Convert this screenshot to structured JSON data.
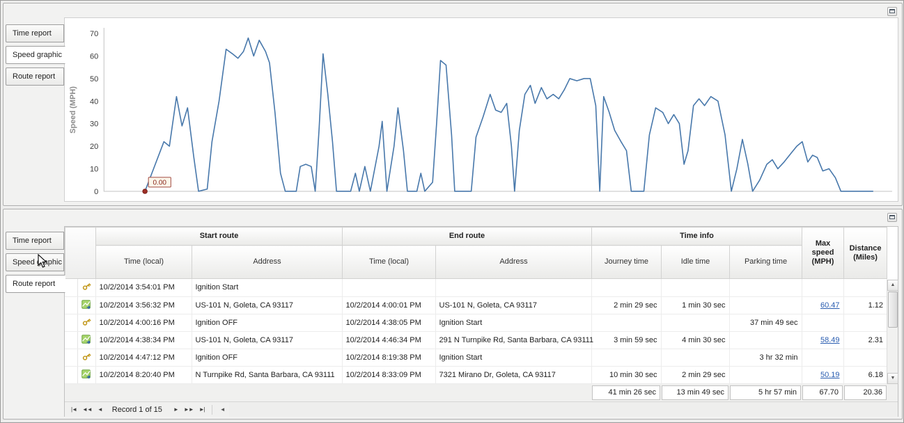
{
  "colors": {
    "chart_line": "#4878ab",
    "marker": "#9d2f26",
    "link": "#2a5db0"
  },
  "top_panel": {
    "tabs": [
      {
        "label": "Time report",
        "selected": false
      },
      {
        "label": "Speed graphic",
        "selected": true
      },
      {
        "label": "Route report",
        "selected": false
      }
    ]
  },
  "chart_data": {
    "type": "line",
    "title": "",
    "xlabel": "",
    "ylabel": "Speed (MPH)",
    "ylim": [
      0,
      70
    ],
    "yticks": [
      0,
      10,
      20,
      30,
      40,
      50,
      60,
      70
    ],
    "grid": false,
    "legend": false,
    "annotation": {
      "text": "0.00",
      "x_pct": 5.2,
      "value": 0
    },
    "series": [
      {
        "name": "Speed (MPH)",
        "points": [
          [
            5.2,
            0
          ],
          [
            7.6,
            22
          ],
          [
            8.3,
            20
          ],
          [
            9.2,
            42
          ],
          [
            9.9,
            29
          ],
          [
            10.6,
            37
          ],
          [
            11.4,
            15
          ],
          [
            12.0,
            0
          ],
          [
            13.1,
            1
          ],
          [
            13.7,
            22
          ],
          [
            14.6,
            40
          ],
          [
            15.5,
            63
          ],
          [
            16.3,
            61
          ],
          [
            17.0,
            59
          ],
          [
            17.7,
            62
          ],
          [
            18.3,
            68
          ],
          [
            19.0,
            60
          ],
          [
            19.7,
            67
          ],
          [
            20.5,
            62
          ],
          [
            21.0,
            57
          ],
          [
            21.7,
            35
          ],
          [
            22.4,
            8
          ],
          [
            23.0,
            0
          ],
          [
            24.4,
            0
          ],
          [
            24.9,
            11
          ],
          [
            25.6,
            12
          ],
          [
            26.3,
            11
          ],
          [
            26.8,
            0
          ],
          [
            27.3,
            28
          ],
          [
            27.8,
            61
          ],
          [
            28.4,
            43
          ],
          [
            29.0,
            22
          ],
          [
            29.5,
            0
          ],
          [
            31.3,
            0
          ],
          [
            31.9,
            8
          ],
          [
            32.4,
            0
          ],
          [
            33.1,
            11
          ],
          [
            33.8,
            0
          ],
          [
            34.9,
            20
          ],
          [
            35.3,
            31
          ],
          [
            35.9,
            0
          ],
          [
            36.8,
            20
          ],
          [
            37.3,
            37
          ],
          [
            38.0,
            18
          ],
          [
            38.5,
            0
          ],
          [
            39.7,
            0
          ],
          [
            40.2,
            8
          ],
          [
            40.7,
            0
          ],
          [
            41.7,
            4
          ],
          [
            42.2,
            30
          ],
          [
            42.7,
            58
          ],
          [
            43.4,
            56
          ],
          [
            44.1,
            25
          ],
          [
            44.5,
            0
          ],
          [
            46.6,
            0
          ],
          [
            47.2,
            24
          ],
          [
            48.1,
            33
          ],
          [
            49.0,
            43
          ],
          [
            49.7,
            36
          ],
          [
            50.4,
            35
          ],
          [
            51.1,
            39
          ],
          [
            51.7,
            20
          ],
          [
            52.1,
            0
          ],
          [
            52.7,
            27
          ],
          [
            53.4,
            43
          ],
          [
            54.1,
            47
          ],
          [
            54.7,
            39
          ],
          [
            55.5,
            46
          ],
          [
            56.2,
            41
          ],
          [
            57.0,
            43
          ],
          [
            57.7,
            41
          ],
          [
            58.4,
            45
          ],
          [
            59.1,
            50
          ],
          [
            60.0,
            49
          ],
          [
            60.9,
            50
          ],
          [
            61.7,
            50
          ],
          [
            62.4,
            38
          ],
          [
            62.9,
            0
          ],
          [
            63.4,
            42
          ],
          [
            64.1,
            35
          ],
          [
            64.8,
            27
          ],
          [
            65.6,
            22
          ],
          [
            66.3,
            18
          ],
          [
            66.9,
            0
          ],
          [
            68.5,
            0
          ],
          [
            69.2,
            25
          ],
          [
            70.0,
            37
          ],
          [
            70.9,
            35
          ],
          [
            71.6,
            30
          ],
          [
            72.3,
            34
          ],
          [
            73.0,
            30
          ],
          [
            73.6,
            12
          ],
          [
            74.1,
            18
          ],
          [
            74.8,
            38
          ],
          [
            75.5,
            41
          ],
          [
            76.2,
            38
          ],
          [
            77.0,
            42
          ],
          [
            77.9,
            40
          ],
          [
            78.8,
            25
          ],
          [
            79.6,
            0
          ],
          [
            80.3,
            10
          ],
          [
            81.0,
            23
          ],
          [
            81.7,
            12
          ],
          [
            82.3,
            0
          ],
          [
            83.2,
            5
          ],
          [
            84.1,
            12
          ],
          [
            84.8,
            14
          ],
          [
            85.5,
            10
          ],
          [
            86.3,
            13
          ],
          [
            87.2,
            17
          ],
          [
            87.9,
            20
          ],
          [
            88.6,
            22
          ],
          [
            89.3,
            13
          ],
          [
            89.9,
            16
          ],
          [
            90.5,
            15
          ],
          [
            91.2,
            9
          ],
          [
            92.0,
            10
          ],
          [
            92.8,
            6
          ],
          [
            93.5,
            0
          ],
          [
            97.6,
            0
          ]
        ]
      }
    ]
  },
  "bottom_panel": {
    "tabs": [
      {
        "label": "Time report",
        "selected": false
      },
      {
        "label": "Speed graphic",
        "selected": false
      },
      {
        "label": "Route report",
        "selected": true
      }
    ],
    "table": {
      "groups": [
        "Start route",
        "End route",
        "Time info"
      ],
      "columns": [
        "Time (local)",
        "Address",
        "Time (local)",
        "Address",
        "Journey time",
        "Idle time",
        "Parking time",
        "Max speed (MPH)",
        "Distance (Miles)"
      ],
      "rows": [
        {
          "icon": "key",
          "start_time": "10/2/2014 3:54:01 PM",
          "start_address": "Ignition Start",
          "end_time": "",
          "end_address": "",
          "journey_time": "",
          "idle_time": "",
          "parking_time": "",
          "max_speed": "",
          "max_speed_link": false,
          "distance": ""
        },
        {
          "icon": "route",
          "start_time": "10/2/2014 3:56:32 PM",
          "start_address": "US-101 N, Goleta, CA 93117",
          "end_time": "10/2/2014 4:00:01 PM",
          "end_address": "US-101 N, Goleta, CA 93117",
          "journey_time": "2 min 29 sec",
          "idle_time": "1 min 30 sec",
          "parking_time": "",
          "max_speed": "60.47",
          "max_speed_link": true,
          "distance": "1.12"
        },
        {
          "icon": "key",
          "start_time": "10/2/2014 4:00:16 PM",
          "start_address": "Ignition OFF",
          "end_time": "10/2/2014 4:38:05 PM",
          "end_address": "Ignition Start",
          "journey_time": "",
          "idle_time": "",
          "parking_time": "37 min 49 sec",
          "max_speed": "",
          "max_speed_link": false,
          "distance": ""
        },
        {
          "icon": "route",
          "start_time": "10/2/2014 4:38:34 PM",
          "start_address": "US-101 N, Goleta, CA 93117",
          "end_time": "10/2/2014 4:46:34 PM",
          "end_address": "291 N Turnpike Rd, Santa Barbara, CA 93111",
          "journey_time": "3 min 59 sec",
          "idle_time": "4 min 30 sec",
          "parking_time": "",
          "max_speed": "58.49",
          "max_speed_link": true,
          "distance": "2.31"
        },
        {
          "icon": "key",
          "start_time": "10/2/2014 4:47:12 PM",
          "start_address": "Ignition OFF",
          "end_time": "10/2/2014 8:19:38 PM",
          "end_address": "Ignition Start",
          "journey_time": "",
          "idle_time": "",
          "parking_time": "3 hr 32 min",
          "max_speed": "",
          "max_speed_link": false,
          "distance": ""
        },
        {
          "icon": "route",
          "start_time": "10/2/2014 8:20:40 PM",
          "start_address": "N Turnpike Rd, Santa Barbara, CA 93111",
          "end_time": "10/2/2014 8:33:09 PM",
          "end_address": "7321 Mirano Dr, Goleta, CA 93117",
          "journey_time": "10 min 30 sec",
          "idle_time": "2 min 29 sec",
          "parking_time": "",
          "max_speed": "50.19",
          "max_speed_link": true,
          "distance": "6.18"
        }
      ],
      "summary": {
        "journey_time": "41 min 26 sec",
        "idle_time": "13 min 49 sec",
        "parking_time": "5 hr 57 min",
        "max_speed": "67.70",
        "distance": "20.36"
      }
    },
    "navigator": {
      "buttons": [
        {
          "name": "first",
          "glyph": "|◄"
        },
        {
          "name": "prev-page",
          "glyph": "◄◄"
        },
        {
          "name": "prev",
          "glyph": "◄"
        },
        {
          "name": "next",
          "glyph": "►"
        },
        {
          "name": "next-page",
          "glyph": "►►"
        },
        {
          "name": "last",
          "glyph": "►|"
        }
      ],
      "record_label": "Record 1 of 15",
      "hscroll_left_glyph": "◄"
    },
    "scrollbar": {
      "up_glyph": "▲",
      "down_glyph": "▼"
    }
  }
}
